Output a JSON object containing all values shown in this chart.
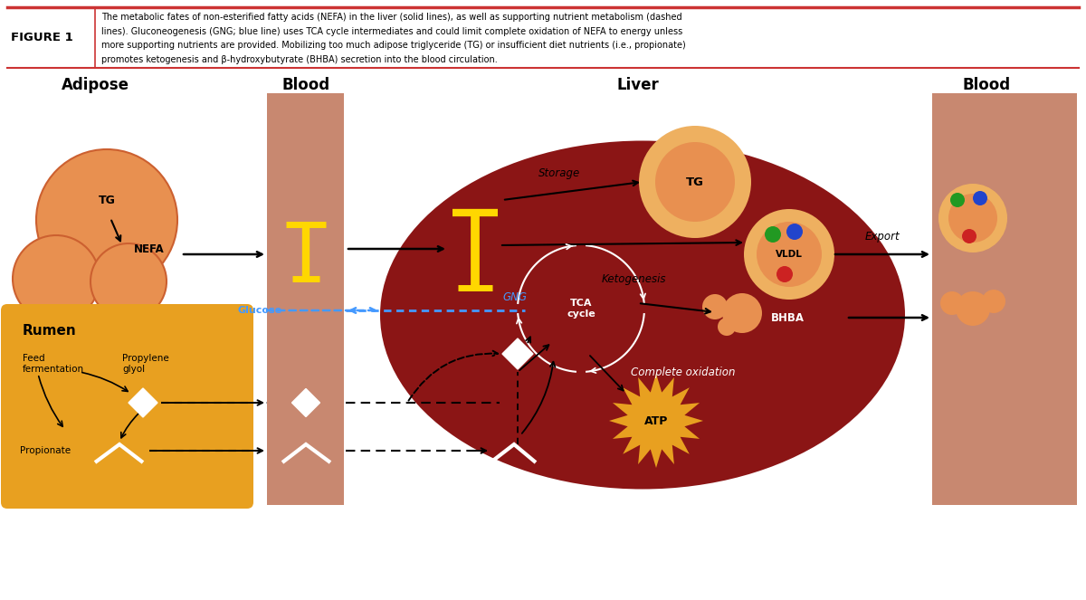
{
  "bg_color": "#ffffff",
  "figure_label": "FIGURE 1",
  "caption_line1": "The metabolic fates of non-esterified fatty acids (NEFA) in the liver (solid lines), as well as supporting nutrient metabolism (dashed",
  "caption_line2": "lines). Gluconeogenesis (GNG; blue line) uses TCA cycle intermediates and could limit complete oxidation of NEFA to energy unless",
  "caption_line3": "more supporting nutrients are provided. Mobilizing too much adipose triglyceride (TG) or insufficient diet nutrients (i.e., propionate)",
  "caption_line4": "promotes ketogenesis and β-hydroxybutyrate (BHBA) secretion into the blood circulation.",
  "adipose_color": "#E89050",
  "adipose_edge": "#CC6030",
  "rumen_color": "#E8A020",
  "blood_color": "#C88870",
  "liver_color": "#8B1515",
  "yellow_marker": "#FFD700",
  "blue_gng": "#4499FF",
  "atp_color": "#E8A020",
  "orange_light": "#EEB060",
  "green_dot": "#229922",
  "blue_dot": "#2244CC",
  "red_dot": "#CC2222"
}
